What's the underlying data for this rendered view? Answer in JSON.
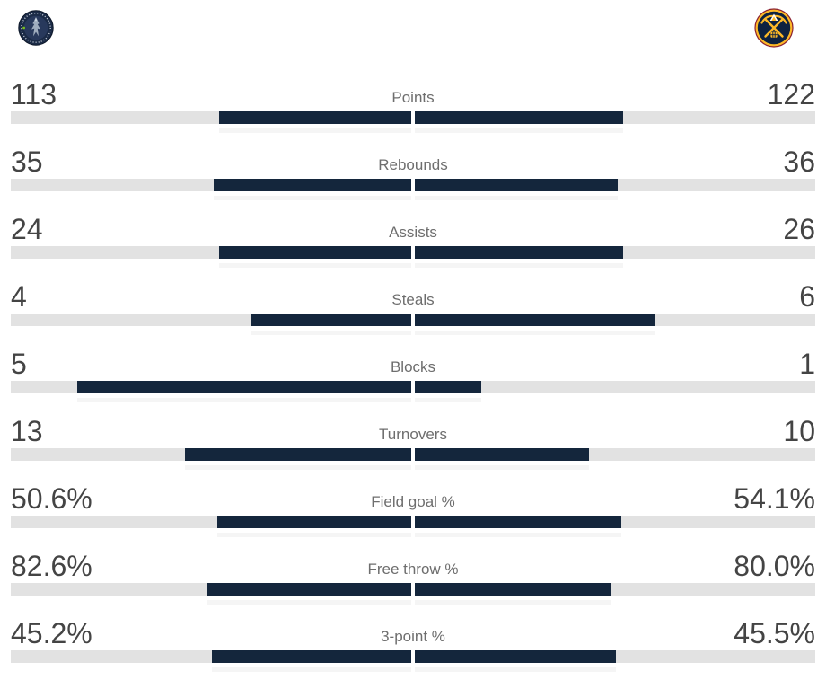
{
  "header": {
    "away_logo_icon": "timberwolves-logo",
    "home_logo_icon": "nuggets-logo"
  },
  "colors": {
    "bar_fill": "#14263c",
    "bar_track": "#e2e2e2",
    "value_text": "#444444",
    "label_text": "#6e6e6e",
    "tw_navy": "#1b2b47",
    "tw_inner": "#28395c",
    "tw_wolf": "#9fadbf",
    "tw_green": "#78be20",
    "dn_navy": "#0e2240",
    "dn_gold": "#fdb927",
    "dn_red_rim": "#8b2131",
    "dn_white": "#ffffff"
  },
  "chart_data": {
    "type": "bar",
    "subtype": "head-to-head comparison, bars fill outward from center, width proportional to value share of row total",
    "legend_position": "team logos top-left and top-right",
    "grid": false,
    "rows": [
      {
        "label": "Points",
        "left": "113",
        "right": "122",
        "left_num": 113,
        "right_num": 122
      },
      {
        "label": "Rebounds",
        "left": "35",
        "right": "36",
        "left_num": 35,
        "right_num": 36
      },
      {
        "label": "Assists",
        "left": "24",
        "right": "26",
        "left_num": 24,
        "right_num": 26
      },
      {
        "label": "Steals",
        "left": "4",
        "right": "6",
        "left_num": 4,
        "right_num": 6
      },
      {
        "label": "Blocks",
        "left": "5",
        "right": "1",
        "left_num": 5,
        "right_num": 1
      },
      {
        "label": "Turnovers",
        "left": "13",
        "right": "10",
        "left_num": 13,
        "right_num": 10
      },
      {
        "label": "Field goal %",
        "left": "50.6%",
        "right": "54.1%",
        "left_num": 50.6,
        "right_num": 54.1
      },
      {
        "label": "Free throw %",
        "left": "82.6%",
        "right": "80.0%",
        "left_num": 82.6,
        "right_num": 80.0
      },
      {
        "label": "3-point %",
        "left": "45.2%",
        "right": "45.5%",
        "left_num": 45.2,
        "right_num": 45.5
      }
    ]
  }
}
